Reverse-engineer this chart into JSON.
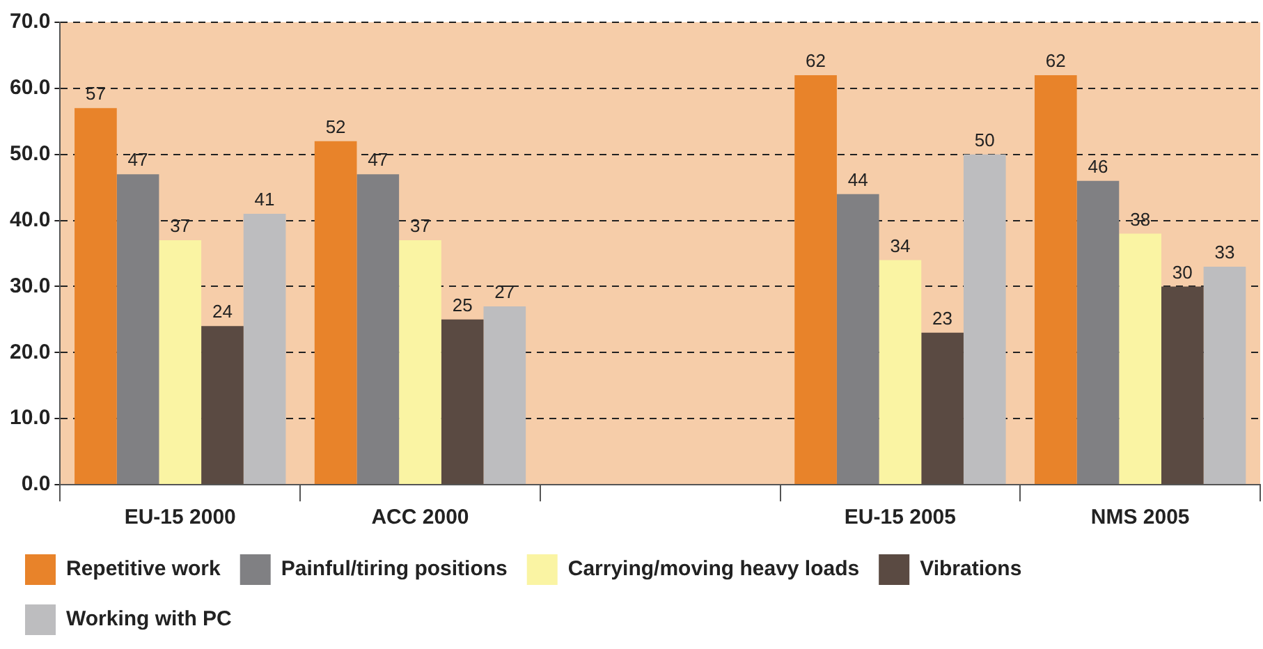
{
  "chart_data": {
    "type": "bar",
    "categories": [
      "EU-15 2000",
      "ACC 2000",
      null,
      "EU-15 2005",
      "NMS 2005"
    ],
    "series": [
      {
        "name": "Repetitive work",
        "color": "#e8832a",
        "values": [
          57,
          52,
          null,
          62,
          62
        ]
      },
      {
        "name": "Painful/tiring positions",
        "color": "#808083",
        "values": [
          47,
          47,
          null,
          44,
          46
        ]
      },
      {
        "name": "Carrying/moving heavy loads",
        "color": "#faf4a3",
        "values": [
          37,
          37,
          null,
          34,
          38
        ]
      },
      {
        "name": "Vibrations",
        "color": "#5a4a42",
        "values": [
          24,
          25,
          null,
          23,
          30
        ]
      },
      {
        "name": "Working with PC",
        "color": "#bdbdbf",
        "values": [
          41,
          27,
          null,
          50,
          33
        ]
      }
    ],
    "ylim": [
      0,
      70
    ],
    "yticks": [
      {
        "value": 0,
        "label": "0.0"
      },
      {
        "value": 10,
        "label": "10.0"
      },
      {
        "value": 20,
        "label": "20.0"
      },
      {
        "value": 30,
        "label": "30.0"
      },
      {
        "value": 40,
        "label": "40.0"
      },
      {
        "value": 50,
        "label": "50.0"
      },
      {
        "value": 60,
        "label": "60.0"
      },
      {
        "value": 70,
        "label": "70.0"
      }
    ],
    "grid": "y",
    "legend": "bottom",
    "data_labels": true
  }
}
